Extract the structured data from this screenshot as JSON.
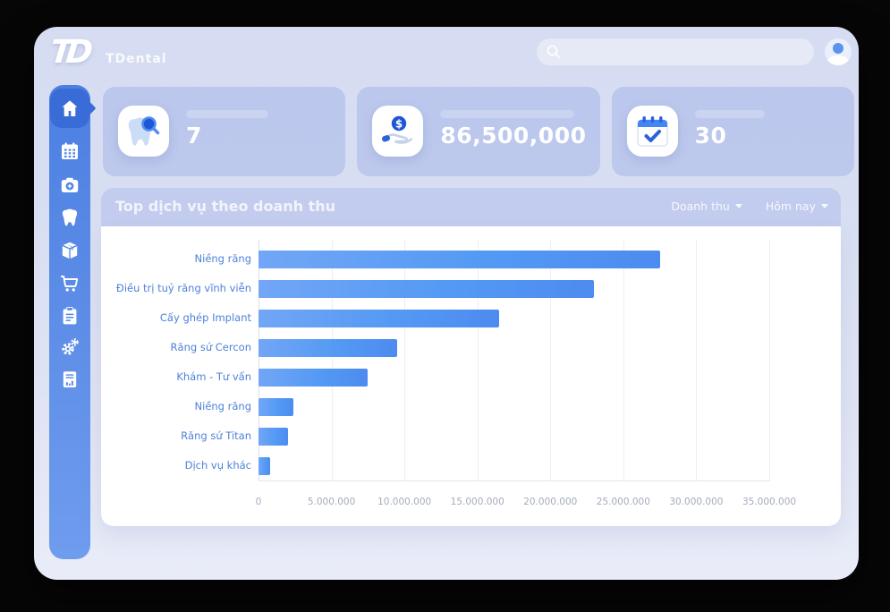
{
  "app": {
    "name": "TDental",
    "logo_mark": "TD"
  },
  "topbar": {
    "search": {
      "placeholder": ""
    }
  },
  "colors": {
    "sidebar_blue": "#5285e4",
    "active_item_blue": "#3a6cd8",
    "bar_blue": "#549af4",
    "label_blue": "#4d82d8",
    "tick_gray": "#a4abbb"
  },
  "sidebar": {
    "items": [
      {
        "icon": "home",
        "active": true
      },
      {
        "icon": "calendar",
        "active": false
      },
      {
        "icon": "camera",
        "active": false
      },
      {
        "icon": "tooth",
        "active": false
      },
      {
        "icon": "package",
        "active": false
      },
      {
        "icon": "cart",
        "active": false
      },
      {
        "icon": "clipboard",
        "active": false
      },
      {
        "icon": "settings-gears",
        "active": false
      },
      {
        "icon": "report",
        "active": false
      }
    ]
  },
  "stat_cards": [
    {
      "icon": "tooth-search",
      "value": "7"
    },
    {
      "icon": "money-hand",
      "value": "86,500,000"
    },
    {
      "icon": "calendar-check",
      "value": "30"
    }
  ],
  "service_section": {
    "title": "Top dịch vụ theo doanh thu",
    "filters": [
      {
        "label": "Doanh thu"
      },
      {
        "label": "Hôm nay"
      }
    ]
  },
  "chart_data": {
    "type": "bar",
    "orientation": "horizontal",
    "title": "Top dịch vụ theo doanh thu",
    "categories": [
      "Niềng răng",
      "Điều trị tuỷ răng vĩnh viễn",
      "Cấy ghép Implant",
      "Răng sứ Cercon",
      "Khám - Tư vấn",
      "Niềng răng",
      "Răng sứ Titan",
      "Dịch vụ khác"
    ],
    "values": [
      27500000,
      23000000,
      16500000,
      9500000,
      7500000,
      2400000,
      2000000,
      800000
    ],
    "xlim": [
      0,
      35000000
    ],
    "x_ticks": [
      "0",
      "5.000.000",
      "10.000.000",
      "15.000.000",
      "20.000.000",
      "25.000.000",
      "30.000.000",
      "35.000.000"
    ],
    "grid": true,
    "legend": false,
    "bar_color": "#549af4"
  }
}
